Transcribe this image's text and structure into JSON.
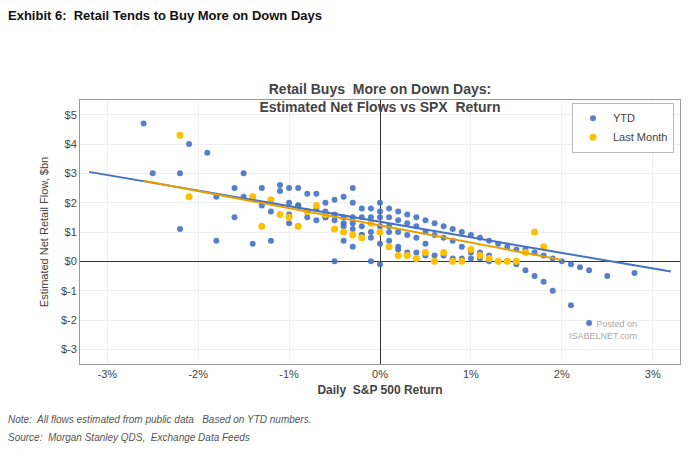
{
  "chart_data": {
    "type": "scatter",
    "title": "Retail Buys  More on Down Days:\nEstimated Net Flows vs SPX  Return",
    "xlabel": "Daily  S&P 500 Return",
    "ylabel": "Estimated Net Retail Flow, $bn",
    "annotations": [
      {
        "text": "Exhibit 6:  Retail Tends to Buy More on Down Days"
      },
      {
        "text": "Note:  All flows estimated from public data   Based on YTD numbers."
      },
      {
        "text": "Source:  Morgan Stanley QDS,  Exchange Data Feeds"
      },
      {
        "text": "Posted on\nISABELNET.com",
        "x": 0.0285,
        "y": -2.8
      }
    ],
    "xlim": [
      -0.033,
      0.033
    ],
    "ylim": [
      -3.5,
      5.5
    ],
    "xticks": [
      {
        "value": -0.03,
        "label": "-3%"
      },
      {
        "value": -0.02,
        "label": "-2%"
      },
      {
        "value": -0.01,
        "label": "-1%"
      },
      {
        "value": 0.0,
        "label": "0%"
      },
      {
        "value": 0.01,
        "label": "1%"
      },
      {
        "value": 0.02,
        "label": "2%"
      },
      {
        "value": 0.03,
        "label": "3%"
      }
    ],
    "yticks": [
      {
        "value": -3,
        "label": "$-3"
      },
      {
        "value": -2,
        "label": "$-2"
      },
      {
        "value": -1,
        "label": "$-1"
      },
      {
        "value": 0,
        "label": "$0"
      },
      {
        "value": 1,
        "label": "$1"
      },
      {
        "value": 2,
        "label": "$2"
      },
      {
        "value": 3,
        "label": "$3"
      },
      {
        "value": 4,
        "label": "$4"
      },
      {
        "value": 5,
        "label": "$5"
      }
    ],
    "grid": true,
    "legend": "upper right",
    "series": [
      {
        "name": "YTD",
        "type": "scatter",
        "marker": "circle",
        "color": "#4472C4",
        "x": [
          -0.026,
          -0.025,
          -0.022,
          -0.022,
          -0.021,
          -0.019,
          -0.018,
          -0.018,
          -0.016,
          -0.016,
          -0.015,
          -0.014,
          -0.014,
          -0.013,
          -0.013,
          -0.012,
          -0.012,
          -0.011,
          -0.011,
          -0.01,
          -0.01,
          -0.01,
          -0.009,
          -0.009,
          -0.009,
          -0.008,
          -0.008,
          -0.007,
          -0.007,
          -0.007,
          -0.006,
          -0.006,
          -0.006,
          -0.005,
          -0.005,
          -0.005,
          -0.005,
          -0.004,
          -0.004,
          -0.004,
          -0.004,
          -0.003,
          -0.003,
          -0.003,
          -0.003,
          -0.003,
          -0.002,
          -0.002,
          -0.002,
          -0.002,
          -0.001,
          -0.001,
          -0.001,
          -0.001,
          0.0,
          0.0,
          0.0,
          0.0,
          0.0,
          0.001,
          0.001,
          0.001,
          0.001,
          0.001,
          0.002,
          0.002,
          0.002,
          0.002,
          0.003,
          0.003,
          0.003,
          0.004,
          0.004,
          0.004,
          0.005,
          0.005,
          0.005,
          0.006,
          0.006,
          0.007,
          0.007,
          0.008,
          0.008,
          0.009,
          0.009,
          0.01,
          0.01,
          0.011,
          0.011,
          0.012,
          0.012,
          0.013,
          0.014,
          0.015,
          0.016,
          0.017,
          0.018,
          0.019,
          0.02,
          0.021,
          0.022,
          0.023,
          0.025,
          0.028,
          -0.015,
          -0.01,
          -0.008,
          -0.006,
          -0.004,
          -0.003,
          -0.002,
          -0.001,
          0.0,
          0.001,
          0.002,
          0.003,
          0.004,
          0.005,
          0.006,
          0.007,
          0.008,
          0.009,
          0.01,
          0.011,
          0.012,
          0.013,
          0.014,
          0.015,
          0.016,
          0.017,
          0.018,
          0.019,
          0.021,
          0.023
        ],
        "values": [
          4.7,
          3.0,
          3.0,
          1.1,
          4.0,
          3.7,
          2.2,
          0.7,
          2.5,
          1.5,
          3.0,
          2.2,
          0.6,
          1.9,
          2.5,
          0.7,
          1.7,
          2.6,
          2.4,
          1.3,
          2.5,
          1.6,
          2.5,
          1.9,
          1.9,
          2.3,
          1.5,
          2.3,
          1.8,
          1.4,
          1.5,
          2.0,
          1.7,
          2.1,
          1.6,
          1.4,
          0.0,
          2.2,
          1.5,
          1.2,
          0.7,
          2.5,
          2.0,
          1.5,
          1.3,
          0.5,
          1.8,
          1.5,
          1.2,
          0.9,
          1.8,
          1.5,
          1.0,
          0.0,
          2.0,
          1.7,
          1.5,
          1.2,
          -0.1,
          1.8,
          1.5,
          1.2,
          1.0,
          0.7,
          1.7,
          1.4,
          1.0,
          0.5,
          1.6,
          1.3,
          0.9,
          1.5,
          1.2,
          0.8,
          1.4,
          1.0,
          0.6,
          1.3,
          0.9,
          1.2,
          0.8,
          1.1,
          0.7,
          1.0,
          0.5,
          0.9,
          0.3,
          0.8,
          0.3,
          0.7,
          0.2,
          0.6,
          0.5,
          0.4,
          0.4,
          0.3,
          0.2,
          0.1,
          0.0,
          -0.1,
          -0.2,
          -0.3,
          -0.5,
          -0.4,
          2.2,
          2.0,
          1.7,
          1.5,
          1.3,
          1.1,
          0.9,
          0.8,
          0.6,
          0.5,
          0.4,
          0.3,
          0.3,
          0.2,
          0.2,
          0.2,
          0.1,
          0.1,
          0.1,
          0.1,
          0.0,
          0.0,
          0.0,
          -0.1,
          -0.3,
          -0.5,
          -0.7,
          -1.0,
          -1.5,
          -2.1
        ]
      },
      {
        "name": "Last Month",
        "type": "scatter",
        "marker": "circle",
        "color": "#FFC000",
        "x": [
          -0.022,
          -0.021,
          -0.014,
          -0.013,
          -0.012,
          -0.011,
          -0.01,
          -0.009,
          -0.008,
          -0.007,
          -0.006,
          -0.005,
          -0.004,
          -0.003,
          -0.002,
          -0.001,
          0.0,
          0.001,
          0.002,
          0.003,
          0.004,
          0.005,
          0.006,
          0.007,
          0.008,
          0.009,
          0.01,
          0.011,
          0.012,
          0.013,
          0.014,
          0.015,
          0.016,
          0.017,
          0.018
        ],
        "values": [
          4.3,
          2.2,
          2.2,
          1.2,
          2.1,
          1.6,
          1.5,
          1.2,
          1.7,
          1.9,
          1.6,
          1.1,
          1.0,
          0.9,
          0.8,
          1.3,
          1.0,
          0.5,
          0.2,
          0.2,
          0.1,
          0.3,
          0.0,
          0.3,
          0.0,
          0.0,
          0.4,
          0.2,
          0.1,
          0.0,
          0.0,
          0.0,
          0.3,
          1.0,
          0.5
        ]
      },
      {
        "type": "line",
        "line_style": "solid",
        "color": "#4472C4",
        "x": [
          -0.032,
          0.032
        ],
        "values": [
          3.05,
          -0.35
        ]
      },
      {
        "type": "line",
        "line_style": "solid",
        "color": "#E8A000",
        "x": [
          -0.026,
          0.02
        ],
        "values": [
          2.75,
          0.05
        ]
      }
    ]
  }
}
